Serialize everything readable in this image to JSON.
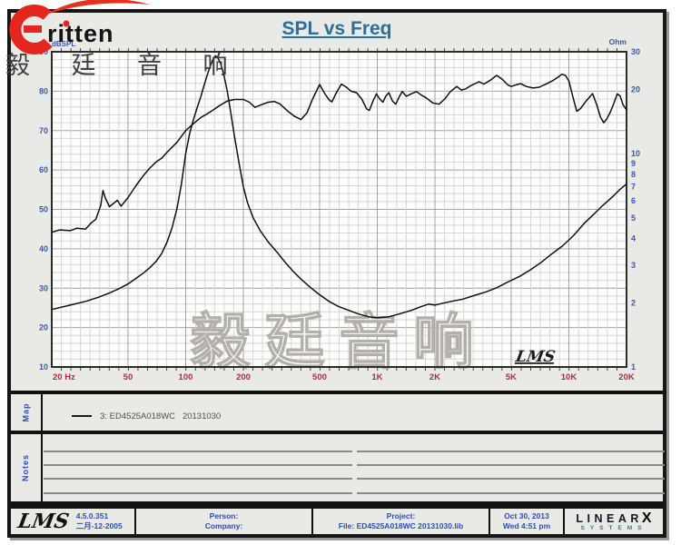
{
  "brand": {
    "name": "ritten",
    "chinese": "毅 廷 音 响"
  },
  "chart_data": {
    "type": "line",
    "title": "SPL vs Freq",
    "grid": true,
    "legend_position": "map-strip",
    "x_axis": {
      "scale": "log",
      "min": 20,
      "max": 20000,
      "unit": "Hz",
      "ticks": [
        {
          "f": 20,
          "label": "20 Hz"
        },
        {
          "f": 50,
          "label": "50"
        },
        {
          "f": 100,
          "label": "100"
        },
        {
          "f": 200,
          "label": "200"
        },
        {
          "f": 500,
          "label": "500"
        },
        {
          "f": 1000,
          "label": "1K"
        },
        {
          "f": 2000,
          "label": "2K"
        },
        {
          "f": 5000,
          "label": "5K"
        },
        {
          "f": 10000,
          "label": "10K"
        },
        {
          "f": 20000,
          "label": "20K"
        }
      ]
    },
    "y_left": {
      "label": "dBSPL",
      "min": 10,
      "max": 90,
      "tick_step": 10,
      "minor_step": 2,
      "ticks": [
        90,
        80,
        70,
        60,
        50,
        40,
        30,
        20,
        10
      ]
    },
    "y_right": {
      "label": "Ohm",
      "scale": "log",
      "min": 1,
      "max": 30,
      "ticks": [
        30,
        20,
        10,
        9,
        8,
        7,
        6,
        5,
        4,
        3,
        2,
        1
      ]
    },
    "series": [
      {
        "name": "SPL",
        "axis": "left",
        "unit": "dB",
        "points": [
          [
            20,
            44.2
          ],
          [
            22,
            44.8
          ],
          [
            25,
            44.6
          ],
          [
            27,
            45.2
          ],
          [
            30,
            45.0
          ],
          [
            32,
            46.5
          ],
          [
            34,
            47.5
          ],
          [
            36,
            51.0
          ],
          [
            37,
            54.8
          ],
          [
            38,
            53.0
          ],
          [
            40,
            50.7
          ],
          [
            42,
            51.5
          ],
          [
            44,
            52.3
          ],
          [
            46,
            50.8
          ],
          [
            50,
            53.0
          ],
          [
            55,
            56.0
          ],
          [
            60,
            58.5
          ],
          [
            65,
            60.5
          ],
          [
            70,
            62.0
          ],
          [
            75,
            63.0
          ],
          [
            80,
            64.5
          ],
          [
            85,
            65.8
          ],
          [
            90,
            67.0
          ],
          [
            100,
            70.0
          ],
          [
            110,
            71.8
          ],
          [
            120,
            73.3
          ],
          [
            130,
            74.3
          ],
          [
            140,
            75.3
          ],
          [
            150,
            76.3
          ],
          [
            165,
            77.5
          ],
          [
            180,
            77.9
          ],
          [
            200,
            77.9
          ],
          [
            215,
            77.2
          ],
          [
            230,
            75.9
          ],
          [
            250,
            76.6
          ],
          [
            270,
            77.2
          ],
          [
            290,
            77.4
          ],
          [
            310,
            76.8
          ],
          [
            340,
            75.0
          ],
          [
            370,
            73.6
          ],
          [
            400,
            72.8
          ],
          [
            430,
            74.5
          ],
          [
            460,
            78.0
          ],
          [
            500,
            81.7
          ],
          [
            530,
            79.5
          ],
          [
            560,
            77.8
          ],
          [
            580,
            77.3
          ],
          [
            610,
            79.5
          ],
          [
            650,
            81.8
          ],
          [
            690,
            81.0
          ],
          [
            730,
            80.0
          ],
          [
            780,
            79.6
          ],
          [
            830,
            78.0
          ],
          [
            880,
            75.5
          ],
          [
            910,
            75.1
          ],
          [
            950,
            77.5
          ],
          [
            990,
            79.3
          ],
          [
            1030,
            78.0
          ],
          [
            1070,
            77.2
          ],
          [
            1110,
            78.8
          ],
          [
            1150,
            79.6
          ],
          [
            1200,
            77.5
          ],
          [
            1250,
            76.7
          ],
          [
            1300,
            78.5
          ],
          [
            1350,
            79.9
          ],
          [
            1420,
            78.7
          ],
          [
            1500,
            79.3
          ],
          [
            1600,
            79.9
          ],
          [
            1700,
            79.0
          ],
          [
            1800,
            78.3
          ],
          [
            1950,
            77.0
          ],
          [
            2100,
            76.7
          ],
          [
            2250,
            78.0
          ],
          [
            2400,
            79.8
          ],
          [
            2600,
            81.2
          ],
          [
            2750,
            80.3
          ],
          [
            2900,
            80.6
          ],
          [
            3100,
            81.5
          ],
          [
            3400,
            82.4
          ],
          [
            3600,
            81.8
          ],
          [
            3900,
            82.8
          ],
          [
            4200,
            84.0
          ],
          [
            4500,
            83.0
          ],
          [
            4800,
            81.6
          ],
          [
            5000,
            81.2
          ],
          [
            5300,
            81.6
          ],
          [
            5600,
            81.9
          ],
          [
            6000,
            81.2
          ],
          [
            6500,
            80.8
          ],
          [
            7000,
            81.0
          ],
          [
            7600,
            81.8
          ],
          [
            8200,
            82.6
          ],
          [
            8800,
            83.6
          ],
          [
            9200,
            84.3
          ],
          [
            9600,
            84.0
          ],
          [
            10000,
            82.6
          ],
          [
            10500,
            78.5
          ],
          [
            11000,
            74.9
          ],
          [
            11500,
            75.6
          ],
          [
            12300,
            77.5
          ],
          [
            13300,
            79.4
          ],
          [
            14000,
            76.5
          ],
          [
            14600,
            73.5
          ],
          [
            15200,
            72.0
          ],
          [
            15800,
            73.0
          ],
          [
            16500,
            74.8
          ],
          [
            17200,
            77.0
          ],
          [
            17900,
            79.3
          ],
          [
            18500,
            78.8
          ],
          [
            19200,
            76.5
          ],
          [
            20000,
            75.3
          ]
        ]
      },
      {
        "name": "Impedance",
        "axis": "right",
        "unit": "Ohm",
        "points": [
          [
            20,
            1.86
          ],
          [
            25,
            1.95
          ],
          [
            30,
            2.03
          ],
          [
            35,
            2.12
          ],
          [
            40,
            2.22
          ],
          [
            45,
            2.33
          ],
          [
            50,
            2.45
          ],
          [
            55,
            2.6
          ],
          [
            60,
            2.75
          ],
          [
            65,
            2.92
          ],
          [
            70,
            3.12
          ],
          [
            75,
            3.4
          ],
          [
            80,
            3.85
          ],
          [
            85,
            4.5
          ],
          [
            90,
            5.5
          ],
          [
            95,
            7.2
          ],
          [
            100,
            10.0
          ],
          [
            105,
            12.5
          ],
          [
            110,
            14.5
          ],
          [
            115,
            16.5
          ],
          [
            120,
            18.5
          ],
          [
            125,
            21.0
          ],
          [
            130,
            23.5
          ],
          [
            135,
            26.0
          ],
          [
            140,
            28.0
          ],
          [
            143,
            28.7
          ],
          [
            147,
            28.2
          ],
          [
            152,
            26.5
          ],
          [
            158,
            23.5
          ],
          [
            165,
            19.5
          ],
          [
            172,
            15.5
          ],
          [
            180,
            12.0
          ],
          [
            190,
            9.0
          ],
          [
            200,
            7.0
          ],
          [
            210,
            5.9
          ],
          [
            225,
            5.0
          ],
          [
            245,
            4.35
          ],
          [
            270,
            3.85
          ],
          [
            300,
            3.45
          ],
          [
            330,
            3.1
          ],
          [
            365,
            2.8
          ],
          [
            400,
            2.58
          ],
          [
            450,
            2.35
          ],
          [
            500,
            2.18
          ],
          [
            560,
            2.03
          ],
          [
            620,
            1.93
          ],
          [
            700,
            1.85
          ],
          [
            800,
            1.77
          ],
          [
            900,
            1.72
          ],
          [
            1000,
            1.7
          ],
          [
            1150,
            1.72
          ],
          [
            1300,
            1.77
          ],
          [
            1500,
            1.84
          ],
          [
            1700,
            1.92
          ],
          [
            1850,
            1.97
          ],
          [
            2000,
            1.95
          ],
          [
            2200,
            1.99
          ],
          [
            2500,
            2.04
          ],
          [
            2800,
            2.08
          ],
          [
            3200,
            2.16
          ],
          [
            3700,
            2.25
          ],
          [
            4200,
            2.35
          ],
          [
            4800,
            2.5
          ],
          [
            5500,
            2.65
          ],
          [
            6300,
            2.85
          ],
          [
            7200,
            3.1
          ],
          [
            8200,
            3.4
          ],
          [
            9300,
            3.7
          ],
          [
            10500,
            4.1
          ],
          [
            12000,
            4.7
          ],
          [
            13500,
            5.2
          ],
          [
            15000,
            5.7
          ],
          [
            17000,
            6.3
          ],
          [
            18500,
            6.8
          ],
          [
            20000,
            7.2
          ]
        ]
      }
    ],
    "watermark": "毅廷音响",
    "plot_logo": "LMS"
  },
  "map": {
    "label": "Map",
    "legend": "3: ED4525A018WC   20131030"
  },
  "notes": {
    "label": "Notes"
  },
  "footer": {
    "logo": "LMS",
    "version": "4.5.0.351",
    "version_date": "二月-12-2005",
    "person_label": "Person:",
    "company_label": "Company:",
    "project_label": "Project:",
    "file_text": "File: ED4525A018WC 20131030.lib",
    "date": "Oct 30, 2013",
    "time": "Wed  4:51 pm",
    "linearx_line1": "LINEAR",
    "linearx_x": "X",
    "linearx_line2": "SYSTEMS"
  },
  "colors": {
    "accent_red": "#e5261e",
    "label_blue": "#3b57b0",
    "tick_red": "#a82e4e",
    "title_blue": "#2e6f95",
    "footer_blue": "#2b4fae",
    "linearx_teal": "#2e7f8e",
    "curve": "#101010",
    "grid_minor": "#d6d6d4",
    "grid_major": "#a2a2a0",
    "plot_border": "#2b2b2b"
  }
}
